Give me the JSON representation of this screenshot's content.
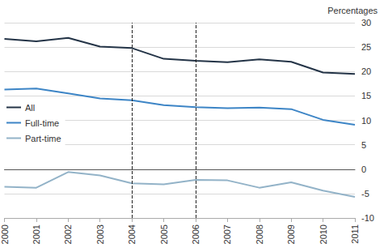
{
  "chart_data": {
    "type": "line",
    "y_label": "Percentages",
    "categories": [
      "2000",
      "2001",
      "2002",
      "2003",
      "2004",
      "2005",
      "2006",
      "2007",
      "2008",
      "2009",
      "2010",
      "2011"
    ],
    "series": [
      {
        "name": "All",
        "color": "#243447",
        "values": [
          26.7,
          26.2,
          26.9,
          25.1,
          24.8,
          22.6,
          22.2,
          21.9,
          22.5,
          22.0,
          19.8,
          19.5
        ]
      },
      {
        "name": "Full-time",
        "color": "#3d85c6",
        "values": [
          16.3,
          16.5,
          15.5,
          14.5,
          14.1,
          13.1,
          12.7,
          12.5,
          12.6,
          12.3,
          10.1,
          9.1
        ]
      },
      {
        "name": "Part-time",
        "color": "#93b3c8",
        "values": [
          -3.6,
          -3.8,
          -0.6,
          -1.3,
          -2.9,
          -3.1,
          -2.2,
          -2.3,
          -3.8,
          -2.7,
          -4.4,
          -5.7
        ]
      }
    ],
    "reference_lines": [
      "2004",
      "2006"
    ],
    "ylim": [
      -10,
      30
    ],
    "yticks": [
      -10,
      -5,
      0,
      5,
      10,
      15,
      20,
      25,
      30
    ],
    "grid": true,
    "legend": "left"
  }
}
